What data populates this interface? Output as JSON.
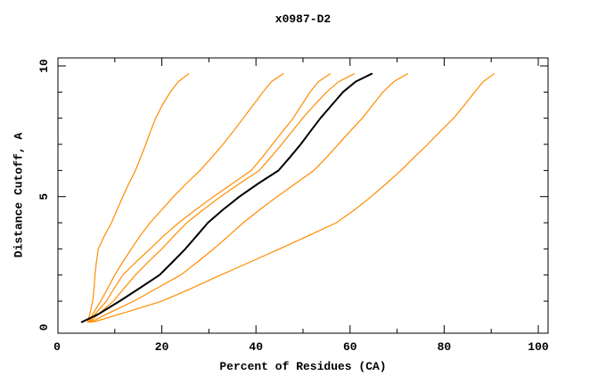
{
  "chart_data": {
    "type": "line",
    "title": "x0987-D2",
    "xlabel": "Percent of Residues (CA)",
    "ylabel": "Distance Cutoff, A",
    "xlim": [
      0,
      100
    ],
    "ylim": [
      0,
      10
    ],
    "grid": false,
    "legend": "none",
    "axis_color": "#000000",
    "accent_color": "#ff8c00",
    "x_major": [
      20,
      40,
      60,
      80,
      100
    ],
    "x_minor": [
      10,
      30,
      50,
      70,
      90
    ],
    "y_major": [
      5,
      10
    ],
    "y_minor": [
      1,
      2,
      3,
      4,
      6,
      7,
      8,
      9
    ],
    "x_tick_labels": [
      {
        "v": 0,
        "t": "0"
      },
      {
        "v": 20,
        "t": "20"
      },
      {
        "v": 40,
        "t": "40"
      },
      {
        "v": 60,
        "t": "60"
      },
      {
        "v": 80,
        "t": "80"
      },
      {
        "v": 100,
        "t": "100"
      }
    ],
    "y_tick_labels": [
      {
        "v": 0,
        "t": "0"
      },
      {
        "v": 5,
        "t": "5"
      },
      {
        "v": 10,
        "t": "10"
      }
    ],
    "cutoffs": [
      0.2,
      0.5,
      1,
      1.5,
      2,
      2.5,
      3,
      3.5,
      4,
      4.5,
      5,
      5.5,
      6,
      6.5,
      7,
      7.5,
      8,
      8.5,
      9,
      9.4,
      9.7
    ],
    "series": [
      {
        "name": "orange-curve-1",
        "color": "#ff8c00",
        "width": 1.2,
        "percent": [
          4.2,
          4.7,
          5.3,
          5.6,
          5.8,
          6.1,
          6.5,
          7.8,
          9.3,
          10.5,
          11.7,
          13.0,
          14.4,
          15.5,
          16.6,
          17.6,
          18.7,
          20.1,
          21.8,
          23.5,
          25.7
        ]
      },
      {
        "name": "orange-curve-2",
        "color": "#ff8c00",
        "width": 1.2,
        "percent": [
          4.4,
          5.3,
          7.0,
          8.5,
          10.0,
          11.7,
          13.5,
          15.4,
          17.5,
          20.0,
          22.5,
          25.2,
          28.1,
          30.6,
          33.0,
          35.2,
          37.3,
          39.4,
          41.5,
          43.3,
          45.8
        ]
      },
      {
        "name": "orange-curve-3",
        "color": "#ff8c00",
        "width": 1.2,
        "percent": [
          4.6,
          5.8,
          8.2,
          9.9,
          11.7,
          14.5,
          17.5,
          20.4,
          23.6,
          27.2,
          31.0,
          35.0,
          39.0,
          41.3,
          43.5,
          45.7,
          47.9,
          49.7,
          51.5,
          53.3,
          55.8
        ]
      },
      {
        "name": "orange-curve-4",
        "color": "#ff8c00",
        "width": 1.2,
        "percent": [
          4.8,
          6.5,
          9.7,
          12.0,
          14.4,
          17.1,
          20.0,
          22.6,
          25.3,
          28.8,
          32.5,
          36.5,
          40.7,
          43.1,
          45.5,
          47.7,
          49.9,
          52.4,
          55.0,
          57.6,
          60.9
        ]
      },
      {
        "name": "orange-curve-5",
        "color": "#ff8c00",
        "width": 1.2,
        "percent": [
          5.0,
          8.2,
          14.0,
          19.0,
          24.0,
          27.6,
          31.0,
          34.2,
          37.3,
          40.8,
          44.5,
          48.4,
          52.3,
          55.0,
          57.5,
          60.0,
          62.6,
          64.8,
          67.0,
          69.3,
          72.2
        ]
      },
      {
        "name": "orange-curve-6",
        "color": "#ff8c00",
        "width": 1.2,
        "percent": [
          5.4,
          11.0,
          20.0,
          26.4,
          32.5,
          38.8,
          45.0,
          51.1,
          57.1,
          61.0,
          64.5,
          67.7,
          70.8,
          73.6,
          76.5,
          79.2,
          82.0,
          84.3,
          86.5,
          88.3,
          90.6
        ]
      },
      {
        "name": "black-curve",
        "color": "#000000",
        "width": 2,
        "percent": [
          3.0,
          6.5,
          11.0,
          15.3,
          19.5,
          22.3,
          25.0,
          27.4,
          29.8,
          33.0,
          36.5,
          40.5,
          44.8,
          47.2,
          49.5,
          51.6,
          53.7,
          56.1,
          58.5,
          61.2,
          64.6
        ]
      }
    ]
  }
}
